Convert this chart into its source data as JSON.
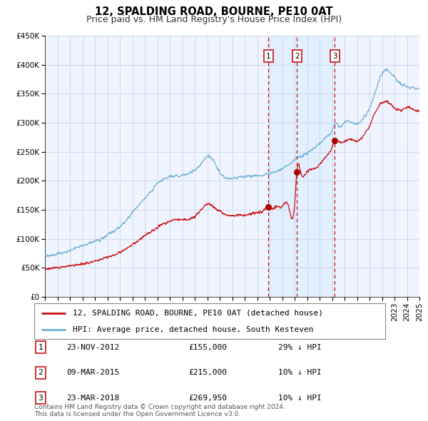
{
  "title": "12, SPALDING ROAD, BOURNE, PE10 0AT",
  "subtitle": "Price paid vs. HM Land Registry's House Price Index (HPI)",
  "xlim": [
    1995,
    2025
  ],
  "ylim": [
    0,
    450000
  ],
  "yticks": [
    0,
    50000,
    100000,
    150000,
    200000,
    250000,
    300000,
    350000,
    400000,
    450000
  ],
  "ytick_labels": [
    "£0",
    "£50K",
    "£100K",
    "£150K",
    "£200K",
    "£250K",
    "£300K",
    "£350K",
    "£400K",
    "£450K"
  ],
  "xticks": [
    1995,
    1996,
    1997,
    1998,
    1999,
    2000,
    2001,
    2002,
    2003,
    2004,
    2005,
    2006,
    2007,
    2008,
    2009,
    2010,
    2011,
    2012,
    2013,
    2014,
    2015,
    2016,
    2017,
    2018,
    2019,
    2020,
    2021,
    2022,
    2023,
    2024,
    2025
  ],
  "hpi_color": "#6aafd4",
  "price_color": "#cc1111",
  "dot_color": "#aa0000",
  "vline_color": "#cc1111",
  "shade_color": "#ddeeff",
  "background_color": "#ffffff",
  "chart_bg": "#f0f4ff",
  "grid_color": "#c8d4e8",
  "sale_dates": [
    2012.9,
    2015.18,
    2018.22
  ],
  "sale_prices": [
    155000,
    215000,
    269950
  ],
  "sale_labels": [
    "1",
    "2",
    "3"
  ],
  "legend_price_label": "12, SPALDING ROAD, BOURNE, PE10 0AT (detached house)",
  "legend_hpi_label": "HPI: Average price, detached house, South Kesteven",
  "table_rows": [
    [
      "1",
      "23-NOV-2012",
      "£155,000",
      "29% ↓ HPI"
    ],
    [
      "2",
      "09-MAR-2015",
      "£215,000",
      "10% ↓ HPI"
    ],
    [
      "3",
      "23-MAR-2018",
      "£269,950",
      "10% ↓ HPI"
    ]
  ],
  "footnote": "Contains HM Land Registry data © Crown copyright and database right 2024.\nThis data is licensed under the Open Government Licence v3.0.",
  "title_fontsize": 10.5,
  "subtitle_fontsize": 9,
  "tick_fontsize": 7.5,
  "legend_fontsize": 8,
  "table_fontsize": 8,
  "footnote_fontsize": 6.5
}
